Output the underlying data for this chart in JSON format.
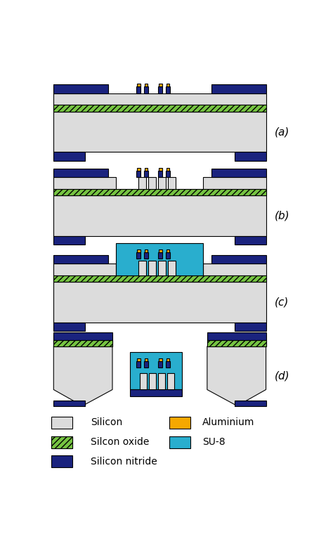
{
  "colors": {
    "silicon": "#DCDCDC",
    "silicon_oxide_green": "#76C442",
    "silicon_nitride": "#1A237E",
    "aluminium": "#F5A800",
    "su8": "#29AECE",
    "background": "#FFFFFF",
    "black": "#000000"
  },
  "legend": {
    "silicon_label": "Silicon",
    "oxide_label": "Silcon oxide",
    "nitride_label": "Silicon nitride",
    "aluminium_label": "Aluminium",
    "su8_label": "SU-8"
  }
}
